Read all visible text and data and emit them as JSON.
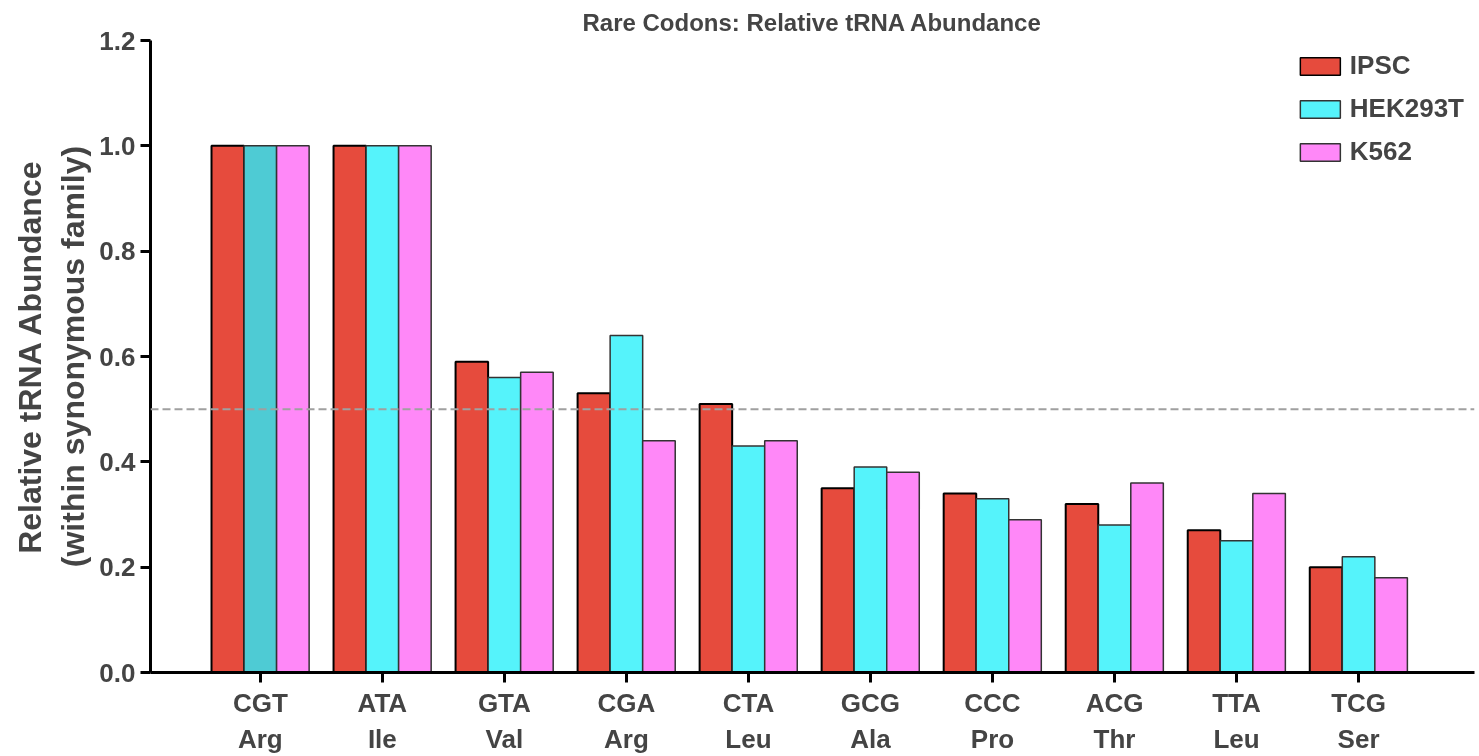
{
  "chart_data": {
    "type": "bar",
    "title": "Rare Codons: Relative tRNA Abundance",
    "ylabel": "Relative tRNA Abundance\n(within synonymous family)",
    "categories": [
      "CGT\nArg",
      "ATA\nIle",
      "GTA\nVal",
      "CGA\nArg",
      "CTA\nLeu",
      "GCG\nAla",
      "CCC\nPro",
      "ACG\nThr",
      "TTA\nLeu",
      "TCG\nSer"
    ],
    "series": [
      {
        "name": "IPSC",
        "color": "#e64b3d",
        "values": [
          1.0,
          1.0,
          0.59,
          0.53,
          0.51,
          0.35,
          0.34,
          0.32,
          0.27,
          0.2
        ]
      },
      {
        "name": "HEK293T",
        "color": "#55f3fb",
        "colors": [
          "#4ecbd4",
          "#55f3fb",
          "#55f3fb",
          "#55f3fb",
          "#55f3fb",
          "#55f3fb",
          "#55f3fb",
          "#55f3fb",
          "#55f3fb",
          "#55f3fb"
        ],
        "values": [
          1.0,
          1.0,
          0.56,
          0.64,
          0.43,
          0.39,
          0.33,
          0.28,
          0.25,
          0.22
        ]
      },
      {
        "name": "K562",
        "color": "#ff88f8",
        "values": [
          1.0,
          1.0,
          0.57,
          0.44,
          0.44,
          0.38,
          0.29,
          0.36,
          0.34,
          0.18
        ]
      }
    ],
    "ylim": [
      0,
      1.2
    ],
    "yticks": [
      {
        "value": 0,
        "label": "0.0"
      },
      0.2,
      0.4,
      0.6,
      0.8,
      {
        "value": 1,
        "label": "1.0"
      },
      1.2
    ],
    "ref_lines": [
      {
        "axis": "y",
        "value": 0.5,
        "color": "#a0a0a0",
        "line_style": "dashed"
      }
    ],
    "grid": false,
    "legend": "top right"
  }
}
